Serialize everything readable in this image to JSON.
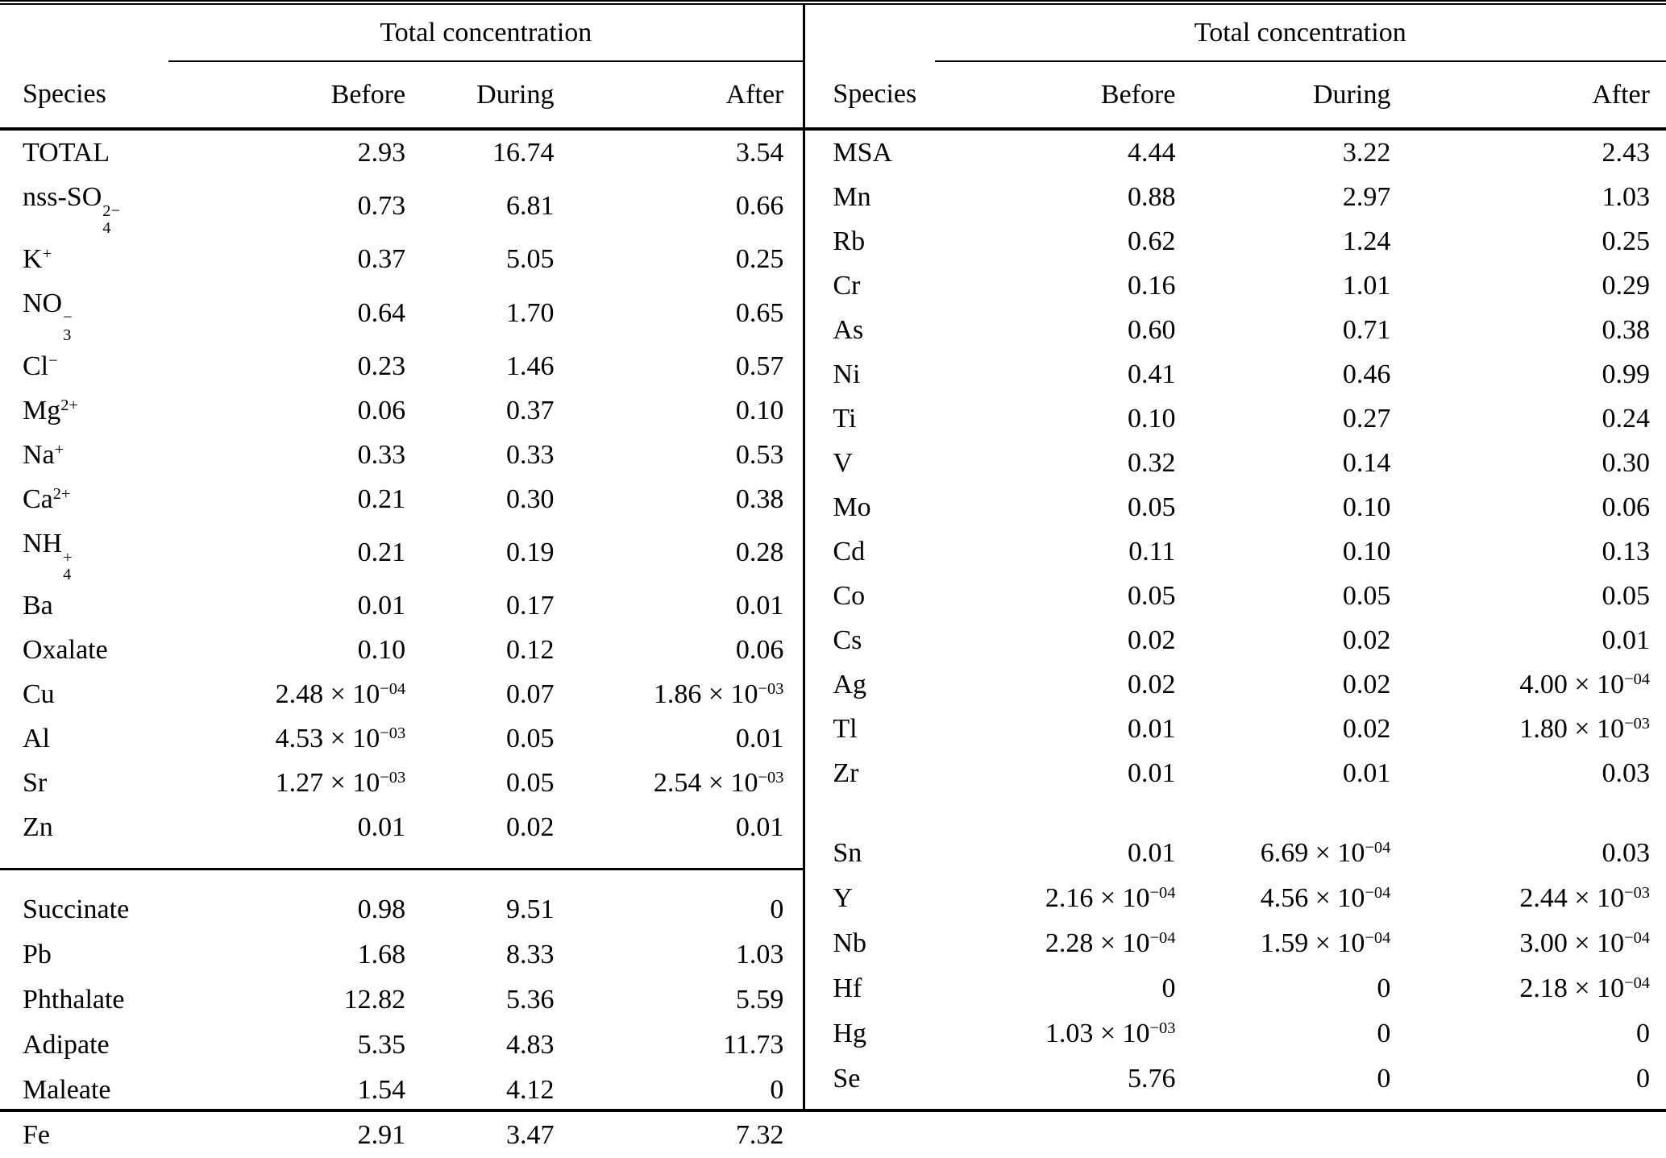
{
  "table": {
    "left": {
      "group_header": "Total concentration",
      "columns": [
        "Species",
        "Before",
        "During",
        "After"
      ],
      "sections": [
        {
          "rows": [
            {
              "species": {
                "base": "TOTAL"
              },
              "values": [
                "2.93",
                "16.74",
                "3.54"
              ]
            },
            {
              "species": {
                "base": "nss-SO",
                "sub": "4",
                "sup": "2−"
              },
              "values": [
                "0.73",
                "6.81",
                "0.66"
              ]
            },
            {
              "species": {
                "base": "K",
                "sup": "+"
              },
              "values": [
                "0.37",
                "5.05",
                "0.25"
              ]
            },
            {
              "species": {
                "base": "NO",
                "sub": "3",
                "sup": "−"
              },
              "values": [
                "0.64",
                "1.70",
                "0.65"
              ]
            },
            {
              "species": {
                "base": "Cl",
                "sup": "−"
              },
              "values": [
                "0.23",
                "1.46",
                "0.57"
              ]
            },
            {
              "species": {
                "base": "Mg",
                "sup": "2+"
              },
              "values": [
                "0.06",
                "0.37",
                "0.10"
              ]
            },
            {
              "species": {
                "base": "Na",
                "sup": "+"
              },
              "values": [
                "0.33",
                "0.33",
                "0.53"
              ]
            },
            {
              "species": {
                "base": "Ca",
                "sup": "2+"
              },
              "values": [
                "0.21",
                "0.30",
                "0.38"
              ]
            },
            {
              "species": {
                "base": "NH",
                "sub": "4",
                "sup": "+"
              },
              "values": [
                "0.21",
                "0.19",
                "0.28"
              ]
            },
            {
              "species": {
                "base": "Ba"
              },
              "values": [
                "0.01",
                "0.17",
                "0.01"
              ]
            },
            {
              "species": {
                "base": "Oxalate"
              },
              "values": [
                "0.10",
                "0.12",
                "0.06"
              ]
            },
            {
              "species": {
                "base": "Cu"
              },
              "values": [
                "2.48 × 10^−04",
                "0.07",
                "1.86 × 10^−03"
              ]
            },
            {
              "species": {
                "base": "Al"
              },
              "values": [
                "4.53 × 10^−03",
                "0.05",
                "0.01"
              ]
            },
            {
              "species": {
                "base": "Sr"
              },
              "values": [
                "1.27 × 10^−03",
                "0.05",
                "2.54 × 10^−03"
              ]
            },
            {
              "species": {
                "base": "Zn"
              },
              "values": [
                "0.01",
                "0.02",
                "0.01"
              ]
            }
          ]
        },
        {
          "rows": [
            {
              "species": {
                "base": "Succinate"
              },
              "values": [
                "0.98",
                "9.51",
                "0"
              ]
            },
            {
              "species": {
                "base": "Pb"
              },
              "values": [
                "1.68",
                "8.33",
                "1.03"
              ]
            },
            {
              "species": {
                "base": "Phthalate"
              },
              "values": [
                "12.82",
                "5.36",
                "5.59"
              ]
            },
            {
              "species": {
                "base": "Adipate"
              },
              "values": [
                "5.35",
                "4.83",
                "11.73"
              ]
            },
            {
              "species": {
                "base": "Maleate"
              },
              "values": [
                "1.54",
                "4.12",
                "0"
              ]
            },
            {
              "species": {
                "base": "Fe"
              },
              "values": [
                "2.91",
                "3.47",
                "7.32"
              ]
            }
          ]
        }
      ]
    },
    "right": {
      "group_header": "Total concentration",
      "columns": [
        "Species",
        "Before",
        "During",
        "After"
      ],
      "sections": [
        {
          "rows": [
            {
              "species": {
                "base": "MSA"
              },
              "values": [
                "4.44",
                "3.22",
                "2.43"
              ]
            },
            {
              "species": {
                "base": "Mn"
              },
              "values": [
                "0.88",
                "2.97",
                "1.03"
              ]
            },
            {
              "species": {
                "base": "Rb"
              },
              "values": [
                "0.62",
                "1.24",
                "0.25"
              ]
            },
            {
              "species": {
                "base": "Cr"
              },
              "values": [
                "0.16",
                "1.01",
                "0.29"
              ]
            },
            {
              "species": {
                "base": "As"
              },
              "values": [
                "0.60",
                "0.71",
                "0.38"
              ]
            },
            {
              "species": {
                "base": "Ni"
              },
              "values": [
                "0.41",
                "0.46",
                "0.99"
              ]
            },
            {
              "species": {
                "base": "Ti"
              },
              "values": [
                "0.10",
                "0.27",
                "0.24"
              ]
            },
            {
              "species": {
                "base": "V"
              },
              "values": [
                "0.32",
                "0.14",
                "0.30"
              ]
            },
            {
              "species": {
                "base": "Mo"
              },
              "values": [
                "0.05",
                "0.10",
                "0.06"
              ]
            },
            {
              "species": {
                "base": "Cd"
              },
              "values": [
                "0.11",
                "0.10",
                "0.13"
              ]
            },
            {
              "species": {
                "base": "Co"
              },
              "values": [
                "0.05",
                "0.05",
                "0.05"
              ]
            },
            {
              "species": {
                "base": "Cs"
              },
              "values": [
                "0.02",
                "0.02",
                "0.01"
              ]
            },
            {
              "species": {
                "base": "Ag"
              },
              "values": [
                "0.02",
                "0.02",
                "4.00 × 10^−04"
              ]
            },
            {
              "species": {
                "base": "Tl"
              },
              "values": [
                "0.01",
                "0.02",
                "1.80 × 10^−03"
              ]
            },
            {
              "species": {
                "base": "Zr"
              },
              "values": [
                "0.01",
                "0.01",
                "0.03"
              ]
            }
          ]
        },
        {
          "rows": [
            {
              "species": {
                "base": "Sn"
              },
              "values": [
                "0.01",
                "6.69 × 10^−04",
                "0.03"
              ]
            },
            {
              "species": {
                "base": "Y"
              },
              "values": [
                "2.16 × 10^−04",
                "4.56 × 10^−04",
                "2.44 × 10^−03"
              ]
            },
            {
              "species": {
                "base": "Nb"
              },
              "values": [
                "2.28 × 10^−04",
                "1.59 × 10^−04",
                "3.00 × 10^−04"
              ]
            },
            {
              "species": {
                "base": "Hf"
              },
              "values": [
                "0",
                "0",
                "2.18 × 10^−04"
              ]
            },
            {
              "species": {
                "base": "Hg"
              },
              "values": [
                "1.03 × 10^−03",
                "0",
                "0"
              ]
            },
            {
              "species": {
                "base": "Se"
              },
              "values": [
                "5.76",
                "0",
                "0"
              ]
            }
          ]
        }
      ]
    }
  }
}
